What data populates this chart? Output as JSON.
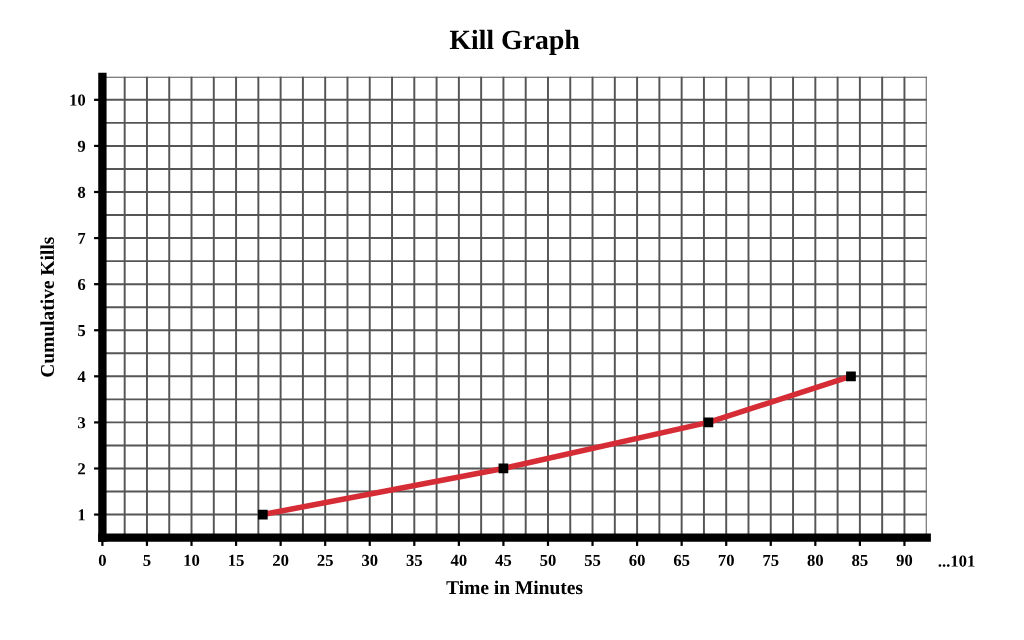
{
  "chart_data": {
    "type": "line",
    "title": "Kill Graph",
    "xlabel": "Time in Minutes",
    "ylabel": "Cumulative Kills",
    "x": [
      18,
      45,
      68,
      84
    ],
    "series": [
      {
        "color": "#d62c35",
        "values": [
          1,
          2,
          3,
          4
        ]
      }
    ],
    "xlim": [
      0,
      92.5
    ],
    "ylim": [
      0.5,
      10.5
    ],
    "xticks": [
      0,
      5,
      10,
      15,
      20,
      25,
      30,
      35,
      40,
      45,
      50,
      55,
      60,
      65,
      70,
      75,
      80,
      85,
      90
    ],
    "yticks": [
      1,
      2,
      3,
      4,
      5,
      6,
      7,
      8,
      9,
      10
    ],
    "annotations": [
      "...101"
    ],
    "grid": true,
    "marker": "square",
    "line_style": "solid"
  }
}
